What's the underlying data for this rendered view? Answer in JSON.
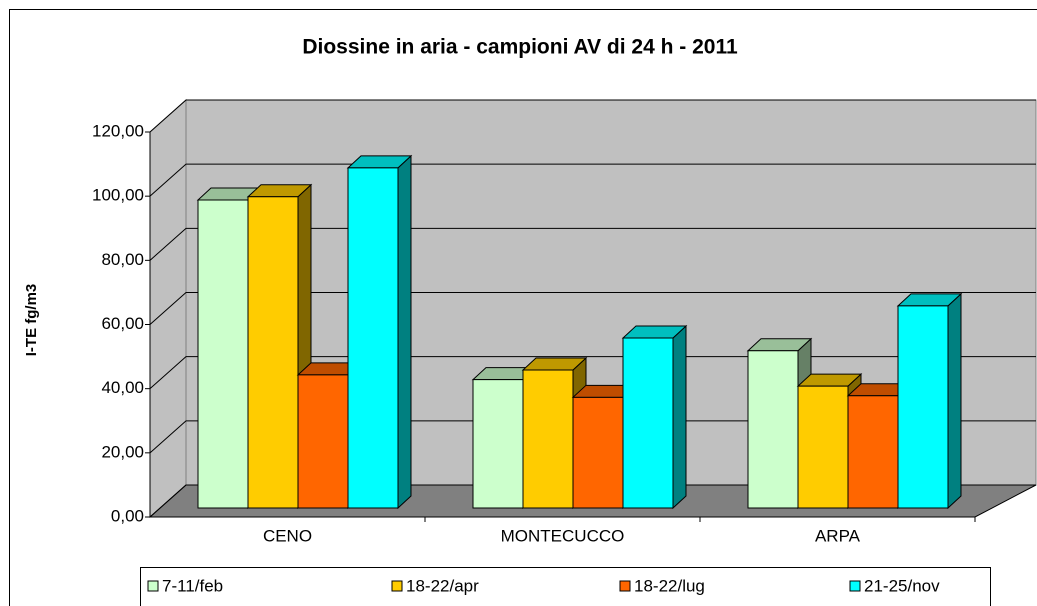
{
  "chart_data": {
    "type": "bar3d",
    "title": "Diossine in aria - campioni AV di 24 h - 2011",
    "y_label": "I-TE fg/m3",
    "categories": [
      "CENO",
      "MONTECUCCO",
      "ARPA"
    ],
    "series": [
      {
        "name": "7-11/feb",
        "color": "#ccffcc",
        "values": [
          96,
          40,
          49
        ]
      },
      {
        "name": "18-22/apr",
        "color": "#ffcc00",
        "values": [
          97,
          43,
          38
        ]
      },
      {
        "name": "18-22/lug",
        "color": "#ff6600",
        "values": [
          41.5,
          34.5,
          35
        ]
      },
      {
        "name": "21-25/nov",
        "color": "#00ffff",
        "values": [
          106,
          53,
          63
        ]
      }
    ],
    "ylim": [
      0,
      120
    ],
    "yticks": [
      {
        "value": 0,
        "label": "0,00"
      },
      {
        "value": 20,
        "label": "20,00"
      },
      {
        "value": 40,
        "label": "40,00"
      },
      {
        "value": 60,
        "label": "60,00"
      },
      {
        "value": 80,
        "label": "80,00"
      },
      {
        "value": 100,
        "label": "100,00"
      },
      {
        "value": 120,
        "label": "120,00"
      }
    ],
    "grid": true,
    "legend": "bottom"
  }
}
